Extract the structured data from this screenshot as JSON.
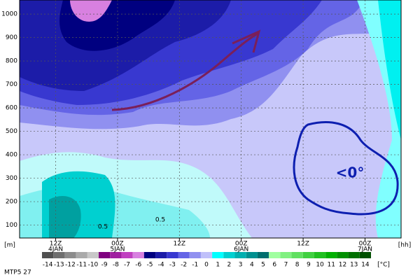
{
  "chart_data": {
    "type": "contour",
    "y_unit": "[m]",
    "x_unit": "[hh]",
    "footer": "MTP5 27",
    "xlim": [
      5,
      79
    ],
    "ylim": [
      45,
      1060
    ],
    "xticks": [
      {
        "value": 12,
        "label": "12Z"
      },
      {
        "value": 24,
        "label": "00Z"
      },
      {
        "value": 36,
        "label": "12Z"
      },
      {
        "value": 48,
        "label": "00Z"
      },
      {
        "value": 60,
        "label": "12Z"
      },
      {
        "value": 72,
        "label": "00Z"
      }
    ],
    "date_labels": [
      "4JAN",
      "5JAN",
      null,
      "6JAN",
      null,
      "7JAN"
    ],
    "yticks": [
      100,
      200,
      300,
      400,
      500,
      600,
      700,
      800,
      900,
      1000
    ],
    "grid": true,
    "annotations": [
      "<0°",
      "0.5",
      "0.5"
    ],
    "colorbar": {
      "unit": "[°C]",
      "levels": [
        -14,
        -13,
        -12,
        -11,
        -10,
        -9,
        -8,
        -7,
        -6,
        -5,
        -4,
        -3,
        -2,
        -1,
        0,
        1,
        2,
        3,
        4,
        5,
        6,
        7,
        8,
        9,
        10,
        11,
        12,
        13,
        14
      ],
      "colors": [
        "#505050",
        "#6e6e6e",
        "#8c8c8c",
        "#aaaaaa",
        "#c8c8c8",
        "#800080",
        "#a020a0",
        "#c040c0",
        "#d880e0",
        "#000080",
        "#1c1ca8",
        "#3838d0",
        "#6464e6",
        "#9090f0",
        "#c0c0fa",
        "#00ffff",
        "#00d0d0",
        "#00b0b0",
        "#009090",
        "#006e6e",
        "#a0ffa0",
        "#80f080",
        "#60e060",
        "#40d040",
        "#20c020",
        "#00b000",
        "#009000",
        "#007000",
        "#005000"
      ]
    }
  }
}
